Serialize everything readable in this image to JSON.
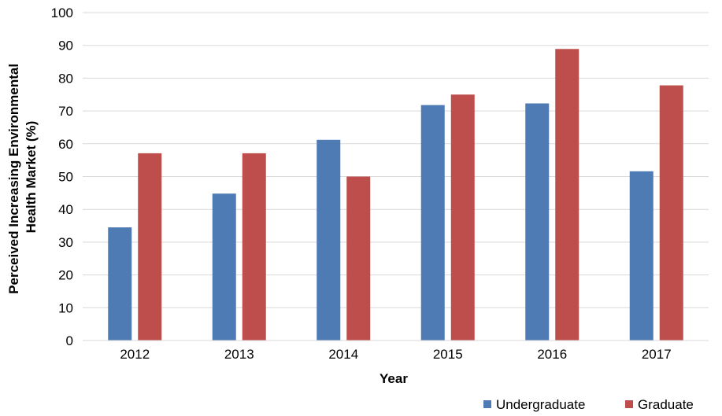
{
  "chart_data": {
    "type": "bar",
    "title": "",
    "xlabel": "Year",
    "ylabel_lines": [
      "Perceived Increasing Environmental",
      "Health Market (%)"
    ],
    "categories": [
      "2012",
      "2013",
      "2014",
      "2015",
      "2016",
      "2017"
    ],
    "series": [
      {
        "name": "Undergraduate",
        "color": "#4F7BB5",
        "values": [
          34.5,
          44.8,
          61.2,
          71.8,
          72.3,
          51.6
        ]
      },
      {
        "name": "Graduate",
        "color": "#BE4E4C",
        "values": [
          57.1,
          57.1,
          50.0,
          75.0,
          88.9,
          77.8
        ]
      }
    ],
    "ylim": [
      0,
      100
    ],
    "yticks": [
      0,
      10,
      20,
      30,
      40,
      50,
      60,
      70,
      80,
      90,
      100
    ],
    "grid": true,
    "grid_color": "#D9D9D9",
    "legend_position": "bottom-right"
  }
}
